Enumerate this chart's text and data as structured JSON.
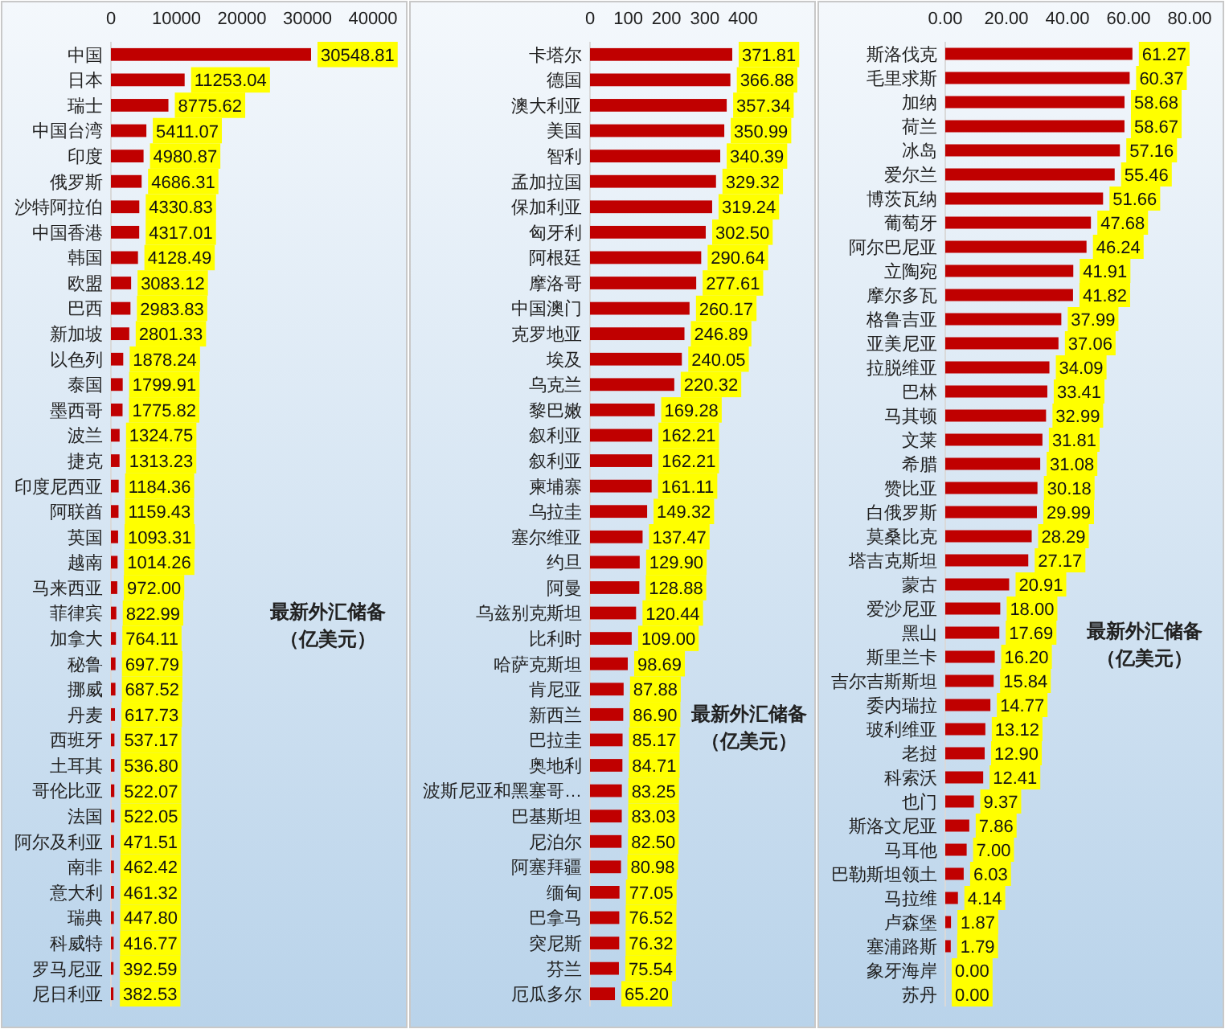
{
  "chart_data": [
    {
      "type": "bar",
      "orientation": "horizontal",
      "color": "#c00000",
      "xlim": [
        0,
        40000
      ],
      "xticks": [
        0,
        10000,
        20000,
        30000,
        40000
      ],
      "grid": false,
      "categories": [
        "中国",
        "日本",
        "瑞士",
        "中国台湾",
        "印度",
        "俄罗斯",
        "沙特阿拉伯",
        "中国香港",
        "韩国",
        "欧盟",
        "巴西",
        "新加坡",
        "以色列",
        "泰国",
        "墨西哥",
        "波兰",
        "捷克",
        "印度尼西亚",
        "阿联酋",
        "英国",
        "越南",
        "马来西亚",
        "菲律宾",
        "加拿大",
        "秘鲁",
        "挪威",
        "丹麦",
        "西班牙",
        "土耳其",
        "哥伦比亚",
        "法国",
        "阿尔及利亚",
        "南非",
        "意大利",
        "瑞典",
        "科威特",
        "罗马尼亚",
        "尼日利亚"
      ],
      "values": [
        30548.81,
        11253.04,
        8775.62,
        5411.07,
        4980.87,
        4686.31,
        4330.83,
        4317.01,
        4128.49,
        3083.12,
        2983.83,
        2801.33,
        1878.24,
        1799.91,
        1775.82,
        1324.75,
        1313.23,
        1184.36,
        1159.43,
        1093.31,
        1014.26,
        972.0,
        822.99,
        764.11,
        697.79,
        687.52,
        617.73,
        537.17,
        536.8,
        522.07,
        522.05,
        471.51,
        462.42,
        461.32,
        447.8,
        416.77,
        392.59,
        382.53
      ],
      "value_labels": [
        "30548.81",
        "11253.04",
        "8775.62",
        "5411.07",
        "4980.87",
        "4686.31",
        "4330.83",
        "4317.01",
        "4128.49",
        "3083.12",
        "2983.83",
        "2801.33",
        "1878.24",
        "1799.91",
        "1775.82",
        "1324.75",
        "1313.23",
        "1184.36",
        "1159.43",
        "1093.31",
        "1014.26",
        "972.00",
        "822.99",
        "764.11",
        "697.79",
        "687.52",
        "617.73",
        "537.17",
        "536.80",
        "522.07",
        "522.05",
        "471.51",
        "462.42",
        "461.32",
        "447.80",
        "416.77",
        "392.59",
        "382.53"
      ],
      "annotations": [
        "最新外汇储备",
        "（亿美元）"
      ]
    },
    {
      "type": "bar",
      "orientation": "horizontal",
      "color": "#c00000",
      "xlim": [
        0,
        500
      ],
      "xticks": [
        0,
        100,
        200,
        300,
        400
      ],
      "grid": false,
      "categories": [
        "卡塔尔",
        "德国",
        "澳大利亚",
        "美国",
        "智利",
        "孟加拉国",
        "保加利亚",
        "匈牙利",
        "阿根廷",
        "摩洛哥",
        "中国澳门",
        "克罗地亚",
        "埃及",
        "乌克兰",
        "黎巴嫩",
        "叙利亚",
        "叙利亚",
        "柬埔寨",
        "乌拉圭",
        "塞尔维亚",
        "约旦",
        "阿曼",
        "乌兹别克斯坦",
        "比利时",
        "哈萨克斯坦",
        "肯尼亚",
        "新西兰",
        "巴拉圭",
        "奥地利",
        "波斯尼亚和黑塞哥…",
        "巴基斯坦",
        "尼泊尔",
        "阿塞拜疆",
        "缅甸",
        "巴拿马",
        "突尼斯",
        "芬兰",
        "厄瓜多尔"
      ],
      "values": [
        371.81,
        366.88,
        357.34,
        350.99,
        340.39,
        329.32,
        319.24,
        302.5,
        290.64,
        277.61,
        260.17,
        246.89,
        240.05,
        220.32,
        169.28,
        162.21,
        162.21,
        161.11,
        149.32,
        137.47,
        129.9,
        128.88,
        120.44,
        109.0,
        98.69,
        87.88,
        86.9,
        85.17,
        84.71,
        83.25,
        83.03,
        82.5,
        80.98,
        77.05,
        76.52,
        76.32,
        75.54,
        65.2
      ],
      "value_labels": [
        "371.81",
        "366.88",
        "357.34",
        "350.99",
        "340.39",
        "329.32",
        "319.24",
        "302.50",
        "290.64",
        "277.61",
        "260.17",
        "246.89",
        "240.05",
        "220.32",
        "169.28",
        "162.21",
        "162.21",
        "161.11",
        "149.32",
        "137.47",
        "129.90",
        "128.88",
        "120.44",
        "109.00",
        "98.69",
        "87.88",
        "86.90",
        "85.17",
        "84.71",
        "83.25",
        "83.03",
        "82.50",
        "80.98",
        "77.05",
        "76.52",
        "76.32",
        "75.54",
        "65.20"
      ],
      "annotations": [
        "最新外汇储备",
        "（亿美元）"
      ]
    },
    {
      "type": "bar",
      "orientation": "horizontal",
      "color": "#c00000",
      "xlim": [
        0,
        80
      ],
      "xticks": [
        {
          "value": 0,
          "label": "0.00"
        },
        {
          "value": 20,
          "label": "20.00"
        },
        {
          "value": 40,
          "label": "40.00"
        },
        {
          "value": 60,
          "label": "60.00"
        },
        {
          "value": 80,
          "label": "80.00"
        }
      ],
      "grid": false,
      "categories": [
        "斯洛伐克",
        "毛里求斯",
        "加纳",
        "荷兰",
        "冰岛",
        "爱尔兰",
        "博茨瓦纳",
        "葡萄牙",
        "阿尔巴尼亚",
        "立陶宛",
        "摩尔多瓦",
        "格鲁吉亚",
        "亚美尼亚",
        "拉脱维亚",
        "巴林",
        "马其顿",
        "文莱",
        "希腊",
        "赞比亚",
        "白俄罗斯",
        "莫桑比克",
        "塔吉克斯坦",
        "蒙古",
        "爱沙尼亚",
        "黑山",
        "斯里兰卡",
        "吉尔吉斯斯坦",
        "委内瑞拉",
        "玻利维亚",
        "老挝",
        "科索沃",
        "也门",
        "斯洛文尼亚",
        "马耳他",
        "巴勒斯坦领土",
        "马拉维",
        "卢森堡",
        "塞浦路斯",
        "象牙海岸",
        "苏丹"
      ],
      "values": [
        61.27,
        60.37,
        58.68,
        58.67,
        57.16,
        55.46,
        51.66,
        47.68,
        46.24,
        41.91,
        41.82,
        37.99,
        37.06,
        34.09,
        33.41,
        32.99,
        31.81,
        31.08,
        30.18,
        29.99,
        28.29,
        27.17,
        20.91,
        18.0,
        17.69,
        16.2,
        15.84,
        14.77,
        13.12,
        12.9,
        12.41,
        9.37,
        7.86,
        7.0,
        6.03,
        4.14,
        1.87,
        1.79,
        0.0,
        0.0
      ],
      "value_labels": [
        "61.27",
        "60.37",
        "58.68",
        "58.67",
        "57.16",
        "55.46",
        "51.66",
        "47.68",
        "46.24",
        "41.91",
        "41.82",
        "37.99",
        "37.06",
        "34.09",
        "33.41",
        "32.99",
        "31.81",
        "31.08",
        "30.18",
        "29.99",
        "28.29",
        "27.17",
        "20.91",
        "18.00",
        "17.69",
        "16.20",
        "15.84",
        "14.77",
        "13.12",
        "12.90",
        "12.41",
        "9.37",
        "7.86",
        "7.00",
        "6.03",
        "4.14",
        "1.87",
        "1.79",
        "0.00",
        "0.00"
      ],
      "annotations": [
        "最新外汇储备",
        "（亿美元）"
      ]
    }
  ]
}
